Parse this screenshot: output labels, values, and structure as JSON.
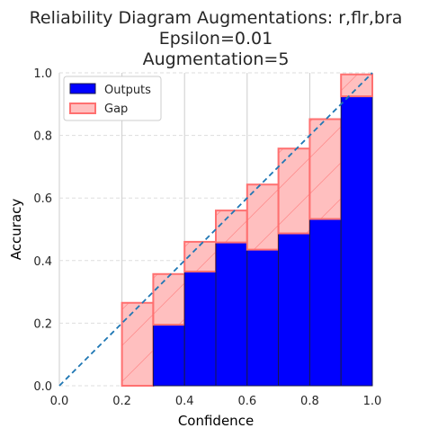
{
  "chart_data": {
    "type": "bar",
    "title_lines": [
      "Reliability Diagram Augmentations: r,flr,bra",
      "Epsilon=0.01",
      "Augmentation=5"
    ],
    "xlabel": "Confidence",
    "ylabel": "Accuracy",
    "xlim": [
      0.0,
      1.0
    ],
    "ylim": [
      0.0,
      1.0
    ],
    "xticks": [
      "0.0",
      "0.2",
      "0.4",
      "0.6",
      "0.8",
      "1.0"
    ],
    "yticks": [
      "0.0",
      "0.2",
      "0.4",
      "0.6",
      "0.8",
      "1.0"
    ],
    "grid": true,
    "legend_position": "top-left",
    "bins": [
      {
        "left": 0.2,
        "right": 0.3,
        "output": 0.0,
        "expected": 0.265
      },
      {
        "left": 0.3,
        "right": 0.4,
        "output": 0.195,
        "expected": 0.357
      },
      {
        "left": 0.4,
        "right": 0.5,
        "output": 0.365,
        "expected": 0.46
      },
      {
        "left": 0.5,
        "right": 0.6,
        "output": 0.458,
        "expected": 0.56
      },
      {
        "left": 0.6,
        "right": 0.7,
        "output": 0.435,
        "expected": 0.643
      },
      {
        "left": 0.7,
        "right": 0.8,
        "output": 0.487,
        "expected": 0.758
      },
      {
        "left": 0.8,
        "right": 0.9,
        "output": 0.533,
        "expected": 0.852
      },
      {
        "left": 0.9,
        "right": 1.0,
        "output": 0.925,
        "expected": 0.995
      }
    ],
    "series": [
      {
        "name": "Outputs",
        "color": "#0000ff",
        "edge": "#1a1a4a"
      },
      {
        "name": "Gap",
        "color": "#ffbfbf",
        "edge": "#ff7070"
      }
    ],
    "diagonal_color": "#1f77b4"
  }
}
